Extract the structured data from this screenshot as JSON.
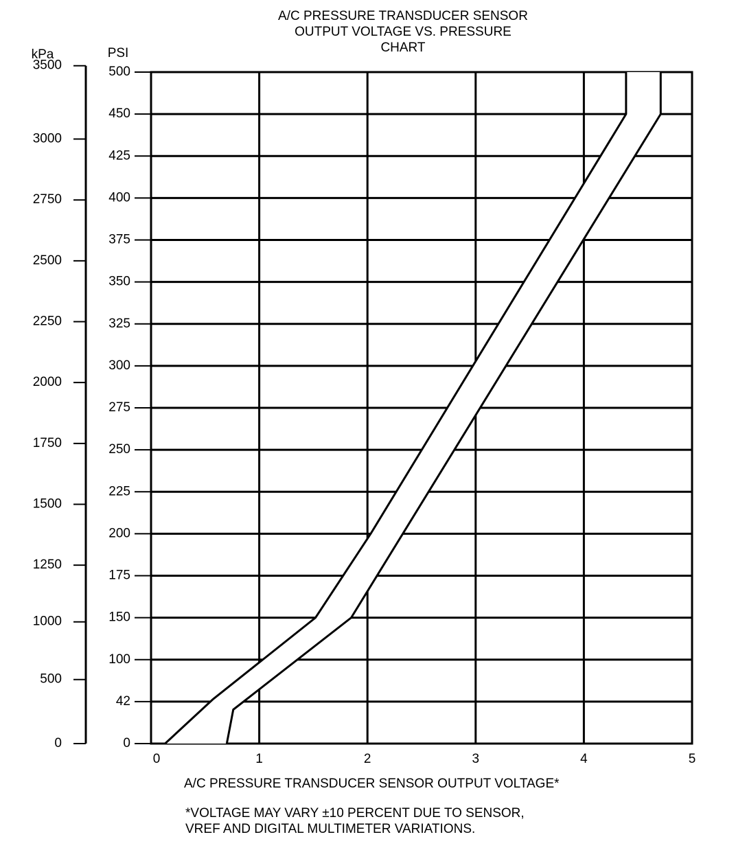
{
  "chart_data": {
    "type": "band",
    "title": [
      "A/C PRESSURE TRANSDUCER SENSOR",
      "OUTPUT VOLTAGE VS. PRESSURE",
      "CHART"
    ],
    "y_label": "PSI",
    "y2_label": "kPa",
    "x_label": "A/C PRESSURE TRANSDUCER SENSOR OUTPUT VOLTAGE*",
    "footnote": [
      "*VOLTAGE MAY VARY ±10 PERCENT DUE TO SENSOR,",
      "VREF AND DIGITAL MULTIMETER VARIATIONS."
    ],
    "xlim": [
      0,
      5
    ],
    "xticks": [
      0,
      1,
      2,
      3,
      4,
      5
    ],
    "ylim": [
      0,
      500
    ],
    "yticks": [
      0,
      42,
      100,
      150,
      175,
      200,
      225,
      250,
      275,
      300,
      325,
      350,
      375,
      400,
      425,
      450,
      500
    ],
    "y2lim": [
      0,
      3500
    ],
    "y2ticks": [
      0,
      500,
      1000,
      1250,
      1500,
      1750,
      2000,
      2250,
      2500,
      2750,
      3000,
      3500
    ],
    "grid": true,
    "color": "#000000",
    "series": [
      {
        "x": [
          0.13,
          0.57,
          1.52,
          2.03,
          4.39,
          4.39
        ],
        "values": [
          0,
          45,
          150,
          200,
          450,
          500
        ]
      },
      {
        "x": [
          0.7,
          0.76,
          1.85,
          4.71,
          4.71
        ],
        "values": [
          0,
          34,
          150,
          450,
          500
        ]
      }
    ]
  }
}
